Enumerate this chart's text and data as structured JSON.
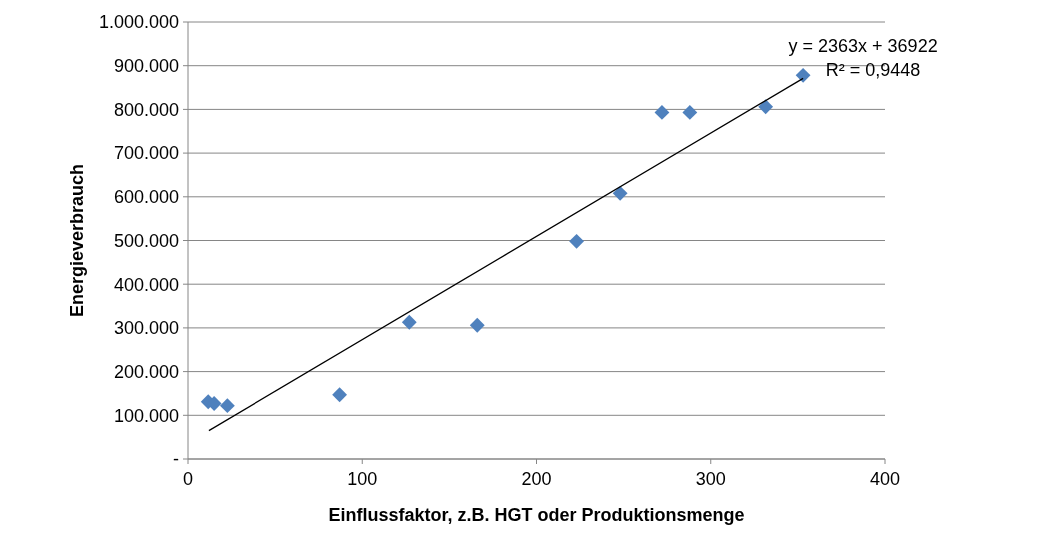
{
  "chart_data": {
    "type": "scatter",
    "xlabel": "Einflussfaktor, z.B. HGT oder Produktionsmenge",
    "ylabel": "Energieverbrauch",
    "series": [
      {
        "color": "#4f81bd",
        "marker": "diamond",
        "x": [
          11.6,
          15,
          22.6,
          87,
          127,
          166,
          223,
          248,
          272,
          288,
          331.5,
          353
        ],
        "values": [
          131000,
          127000,
          122000,
          147000,
          313000,
          306000,
          498000,
          608000,
          793000,
          793000,
          806000,
          878000
        ]
      },
      {
        "type": "line",
        "color": "#000000",
        "marker": "none",
        "line_style": "solid",
        "x": [
          12,
          353
        ],
        "values": [
          65000,
          871000
        ]
      }
    ],
    "annotations": [
      "y = 2363x + 36922",
      "R² = 0,9448"
    ],
    "xlim": [
      0,
      400
    ],
    "xticks": [
      0,
      100,
      200,
      300,
      400
    ],
    "ylim": [
      0,
      1000000
    ],
    "yticks": [
      {
        "value": 0,
        "label": "-"
      },
      {
        "value": 100000,
        "label": "100.000"
      },
      {
        "value": 200000,
        "label": "200.000"
      },
      {
        "value": 300000,
        "label": "300.000"
      },
      {
        "value": 400000,
        "label": "400.000"
      },
      {
        "value": 500000,
        "label": "500.000"
      },
      {
        "value": 600000,
        "label": "600.000"
      },
      {
        "value": 700000,
        "label": "700.000"
      },
      {
        "value": 800000,
        "label": "800.000"
      },
      {
        "value": 900000,
        "label": "900.000"
      },
      {
        "value": 1000000,
        "label": "1.000.000"
      }
    ],
    "grid": "y"
  }
}
